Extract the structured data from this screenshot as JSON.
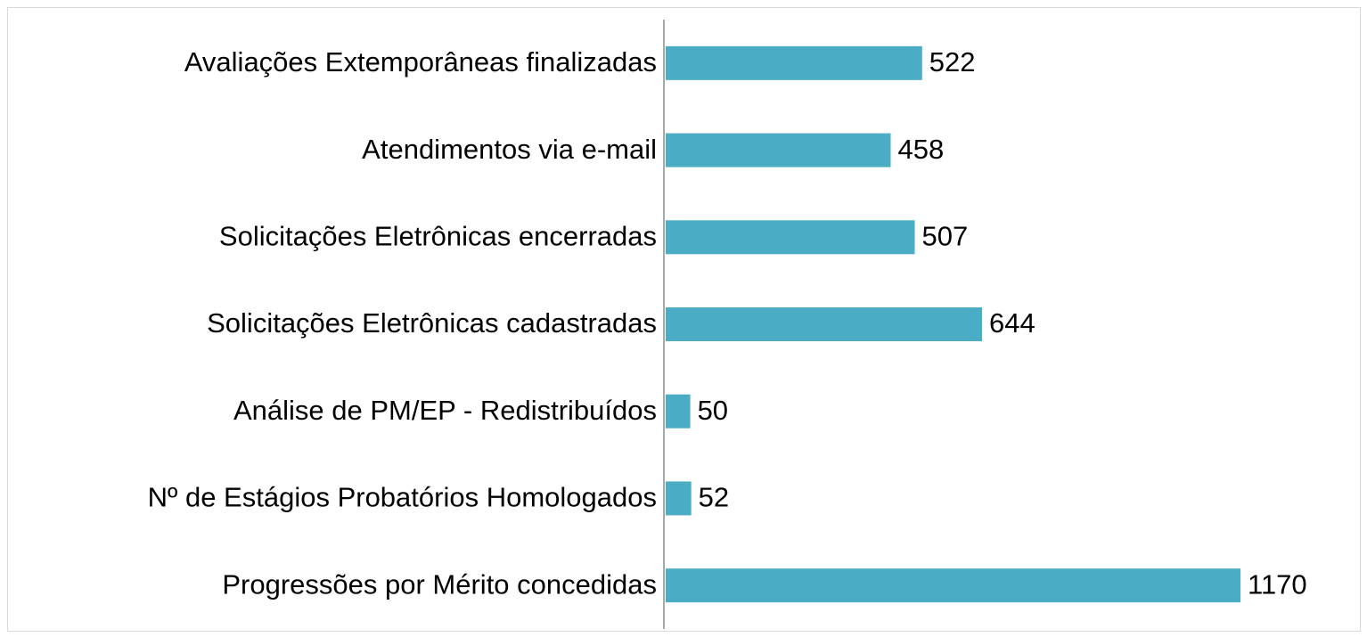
{
  "chart_data": {
    "type": "barh",
    "categories": [
      "Avaliações Extemporâneas finalizadas",
      "Atendimentos via e-mail",
      "Solicitações Eletrônicas encerradas",
      "Solicitações Eletrônicas cadastradas",
      "Análise de PM/EP - Redistribuídos",
      "Nº de Estágios Probatórios Homologados",
      "Progressões por Mérito concedidas"
    ],
    "values": [
      522,
      458,
      507,
      644,
      50,
      52,
      1170
    ],
    "color": "#4bacc6"
  }
}
